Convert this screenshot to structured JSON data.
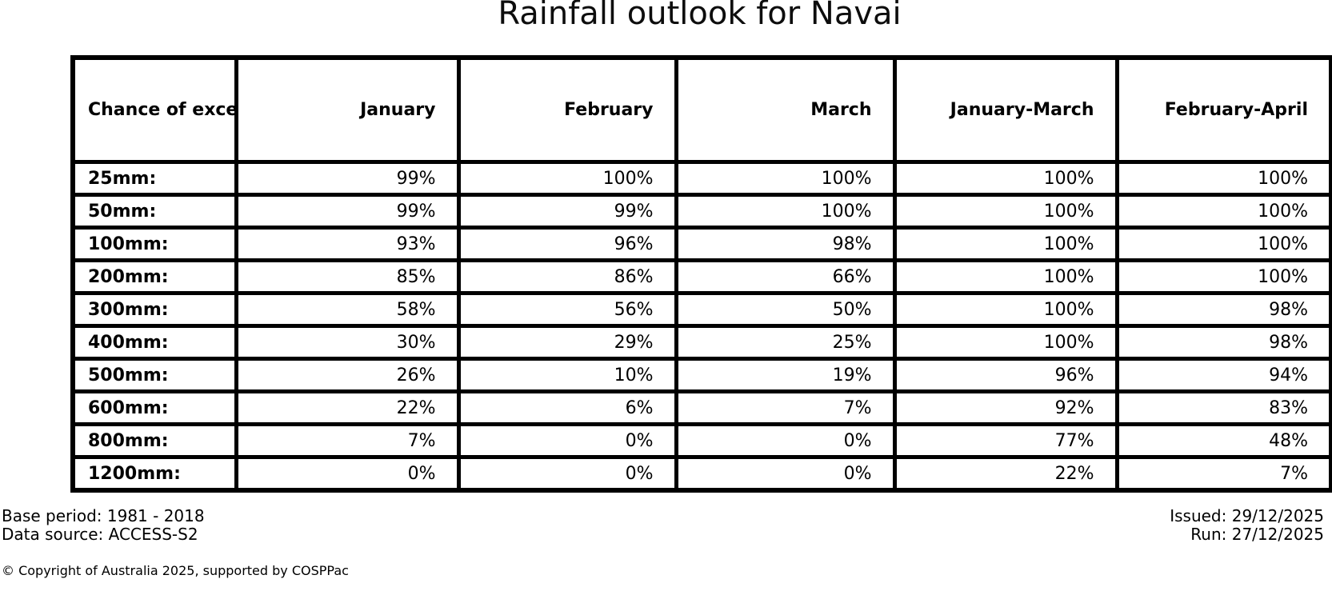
{
  "title": "Rainfall outlook for Navai",
  "chart_data": {
    "type": "table",
    "title": "Rainfall outlook for Navai",
    "units": "%",
    "corner_header": "Chance of\nexceeding\na threshold:",
    "columns": [
      "January",
      "February",
      "March",
      "January-March",
      "February-April"
    ],
    "rows": [
      {
        "label": "25mm:",
        "values": [
          "99%",
          "100%",
          "100%",
          "100%",
          "100%"
        ]
      },
      {
        "label": "50mm:",
        "values": [
          "99%",
          "99%",
          "100%",
          "100%",
          "100%"
        ]
      },
      {
        "label": "100mm:",
        "values": [
          "93%",
          "96%",
          "98%",
          "100%",
          "100%"
        ]
      },
      {
        "label": "200mm:",
        "values": [
          "85%",
          "86%",
          "66%",
          "100%",
          "100%"
        ]
      },
      {
        "label": "300mm:",
        "values": [
          "58%",
          "56%",
          "50%",
          "100%",
          "98%"
        ]
      },
      {
        "label": "400mm:",
        "values": [
          "30%",
          "29%",
          "25%",
          "100%",
          "98%"
        ]
      },
      {
        "label": "500mm:",
        "values": [
          "26%",
          "10%",
          "19%",
          "96%",
          "94%"
        ]
      },
      {
        "label": "600mm:",
        "values": [
          "22%",
          "6%",
          "7%",
          "92%",
          "83%"
        ]
      },
      {
        "label": "800mm:",
        "values": [
          "7%",
          "0%",
          "0%",
          "77%",
          "48%"
        ]
      },
      {
        "label": "1200mm:",
        "values": [
          "0%",
          "0%",
          "0%",
          "22%",
          "7%"
        ]
      }
    ]
  },
  "footer": {
    "base_period": "Base period: 1981 - 2018",
    "data_source": "Data source: ACCESS-S2",
    "issued": "Issued: 29/12/2025",
    "run": "Run: 27/12/2025",
    "copyright": "© Copyright of Australia 2025, supported by COSPPac"
  }
}
